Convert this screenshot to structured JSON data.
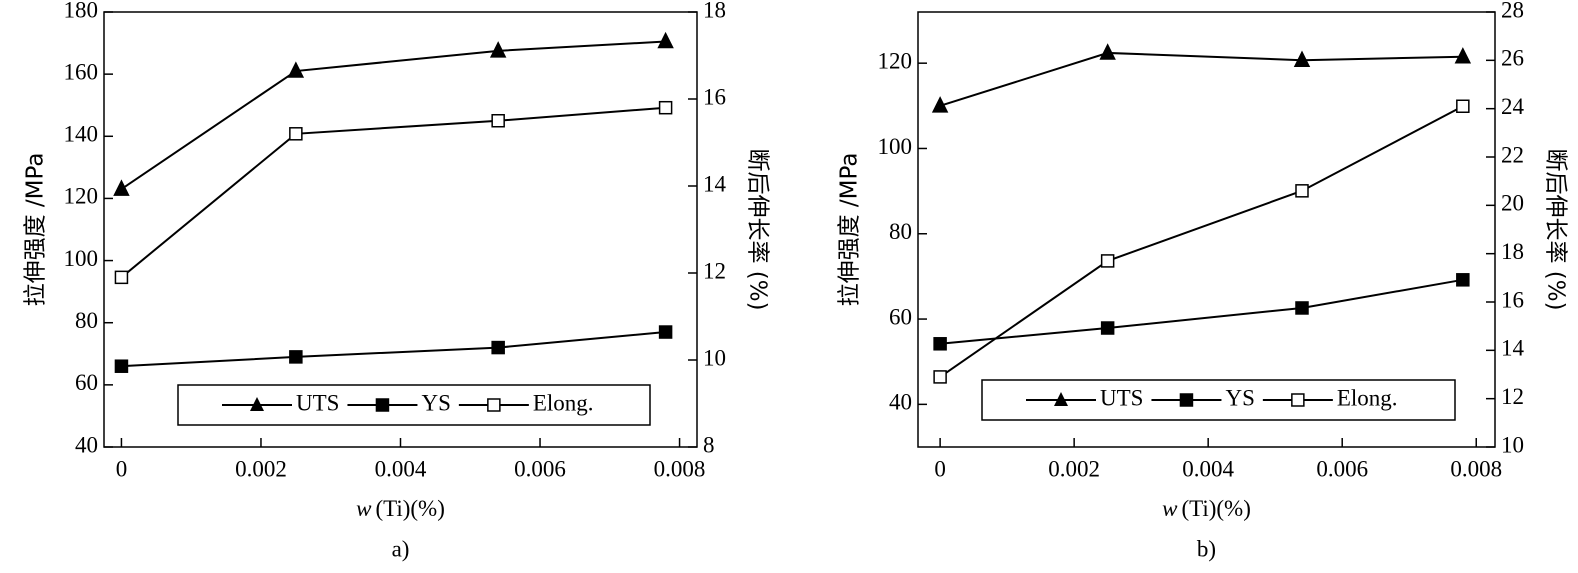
{
  "chart_data": [
    {
      "type": "line",
      "sublabel": "a)",
      "ylabel": "拉伸强度 /MPa",
      "y2label": "断后伸长率 (%)",
      "xlabel_var": "w",
      "xlabel": "(Ti)(%)",
      "x": [
        0,
        0.0025,
        0.0054,
        0.0078
      ],
      "xlim": [
        -0.00025,
        0.00825
      ],
      "xticks": [
        0,
        0.002,
        0.004,
        0.006,
        0.008
      ],
      "ylim": [
        40,
        180
      ],
      "yticks": [
        40,
        60,
        80,
        100,
        120,
        140,
        160,
        180
      ],
      "y2lim": [
        8,
        18
      ],
      "y2ticks": [
        8,
        10,
        12,
        14,
        16,
        18
      ],
      "series": [
        {
          "name": "UTS",
          "color": "#000000",
          "marker": "triangle",
          "values": [
            123,
            161,
            167.5,
            170.5
          ]
        },
        {
          "name": "YS",
          "color": "#000000",
          "marker": "square",
          "values": [
            66,
            69,
            72,
            77
          ]
        },
        {
          "name": "Elong.",
          "color": "#000000",
          "marker": "open-square",
          "axis": "y2",
          "values": [
            11.9,
            15.2,
            15.5,
            15.8
          ]
        }
      ]
    },
    {
      "type": "line",
      "sublabel": "b)",
      "ylabel": "拉伸强度 /MPa",
      "y2label": "断后伸长率 (%)",
      "xlabel_var": "w",
      "xlabel": "(Ti)(%)",
      "x": [
        0,
        0.0025,
        0.0054,
        0.0078
      ],
      "xlim": [
        -0.00033,
        0.00828
      ],
      "xticks": [
        0,
        0.002,
        0.004,
        0.006,
        0.008
      ],
      "ylim": [
        30,
        132
      ],
      "yticks": [
        40,
        60,
        80,
        100,
        120
      ],
      "y2lim": [
        10,
        28
      ],
      "y2ticks": [
        10,
        12,
        14,
        16,
        18,
        20,
        22,
        24,
        26,
        28
      ],
      "series": [
        {
          "name": "UTS",
          "color": "#000000",
          "marker": "triangle",
          "values": [
            110,
            122.4,
            120.7,
            121.5
          ]
        },
        {
          "name": "YS",
          "color": "#000000",
          "marker": "square",
          "values": [
            54.2,
            57.9,
            62.6,
            69.2
          ]
        },
        {
          "name": "Elong.",
          "color": "#000000",
          "marker": "open-square",
          "axis": "y2",
          "values": [
            12.9,
            17.7,
            20.6,
            24.1
          ]
        }
      ]
    }
  ]
}
